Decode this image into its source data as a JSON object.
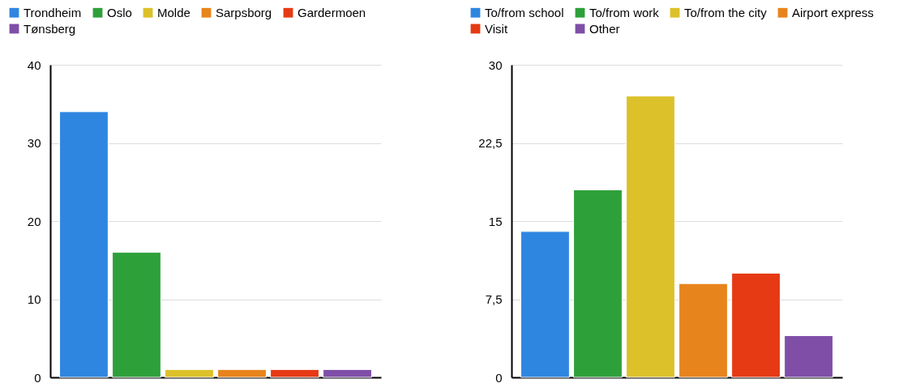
{
  "chart_data": [
    {
      "type": "bar",
      "categories": [
        null
      ],
      "series": [
        {
          "name": "Trondheim",
          "color": "#2f86e0",
          "values": [
            34
          ]
        },
        {
          "name": "Oslo",
          "color": "#2ea03a",
          "values": [
            16
          ]
        },
        {
          "name": "Molde",
          "color": "#dcc12a",
          "values": [
            1
          ]
        },
        {
          "name": "Sarpsborg",
          "color": "#e8841c",
          "values": [
            1
          ]
        },
        {
          "name": "Gardermoen",
          "color": "#e53a14",
          "values": [
            1
          ]
        },
        {
          "name": "Tønsberg",
          "color": "#7f4fa8",
          "values": [
            1
          ]
        }
      ],
      "ylim": [
        0,
        40
      ],
      "yticks": [
        0,
        10,
        20,
        30,
        40
      ],
      "grid": "y",
      "legend": "top"
    },
    {
      "type": "bar",
      "categories": [
        null
      ],
      "series": [
        {
          "name": "To/from school",
          "color": "#2f86e0",
          "values": [
            14
          ]
        },
        {
          "name": "To/from work",
          "color": "#2ea03a",
          "values": [
            18
          ]
        },
        {
          "name": "To/from the city",
          "color": "#dcc12a",
          "values": [
            27
          ]
        },
        {
          "name": "Airport express",
          "color": "#e8841c",
          "values": [
            9
          ]
        },
        {
          "name": "Visit",
          "color": "#e53a14",
          "values": [
            10
          ]
        },
        {
          "name": "Other",
          "color": "#7f4fa8",
          "values": [
            4
          ]
        }
      ],
      "ylim": [
        0,
        30
      ],
      "yticks": [
        0,
        {
          "value": 7.5,
          "label": "7,5"
        },
        15,
        {
          "value": 22.5,
          "label": "22,5"
        },
        30
      ],
      "grid": "y",
      "legend": "top"
    }
  ]
}
